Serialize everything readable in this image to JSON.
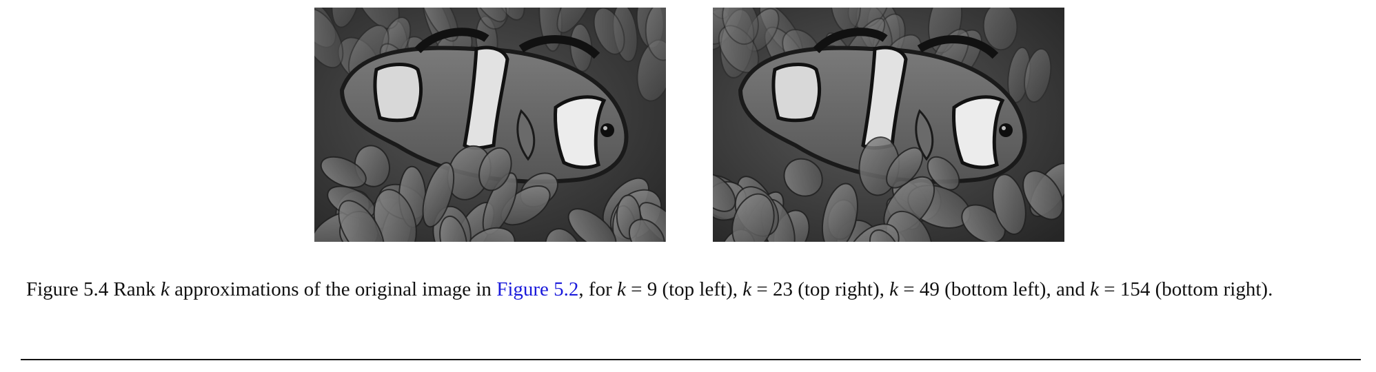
{
  "figure": {
    "panels": [
      {
        "name": "rank-k-approximation-1"
      },
      {
        "name": "rank-k-approximation-2"
      }
    ]
  },
  "caption": {
    "lead": "Figure 5.4 Rank ",
    "k": "k",
    "text1": " approximations of the original image in ",
    "link": "Figure 5.2",
    "text2": ", for ",
    "eq1": " = 9 (top left), ",
    "eq2": " = 23 (top right), ",
    "eq3": " = 49 (bottom left), and ",
    "eq4": " = 154 (bottom right)."
  }
}
